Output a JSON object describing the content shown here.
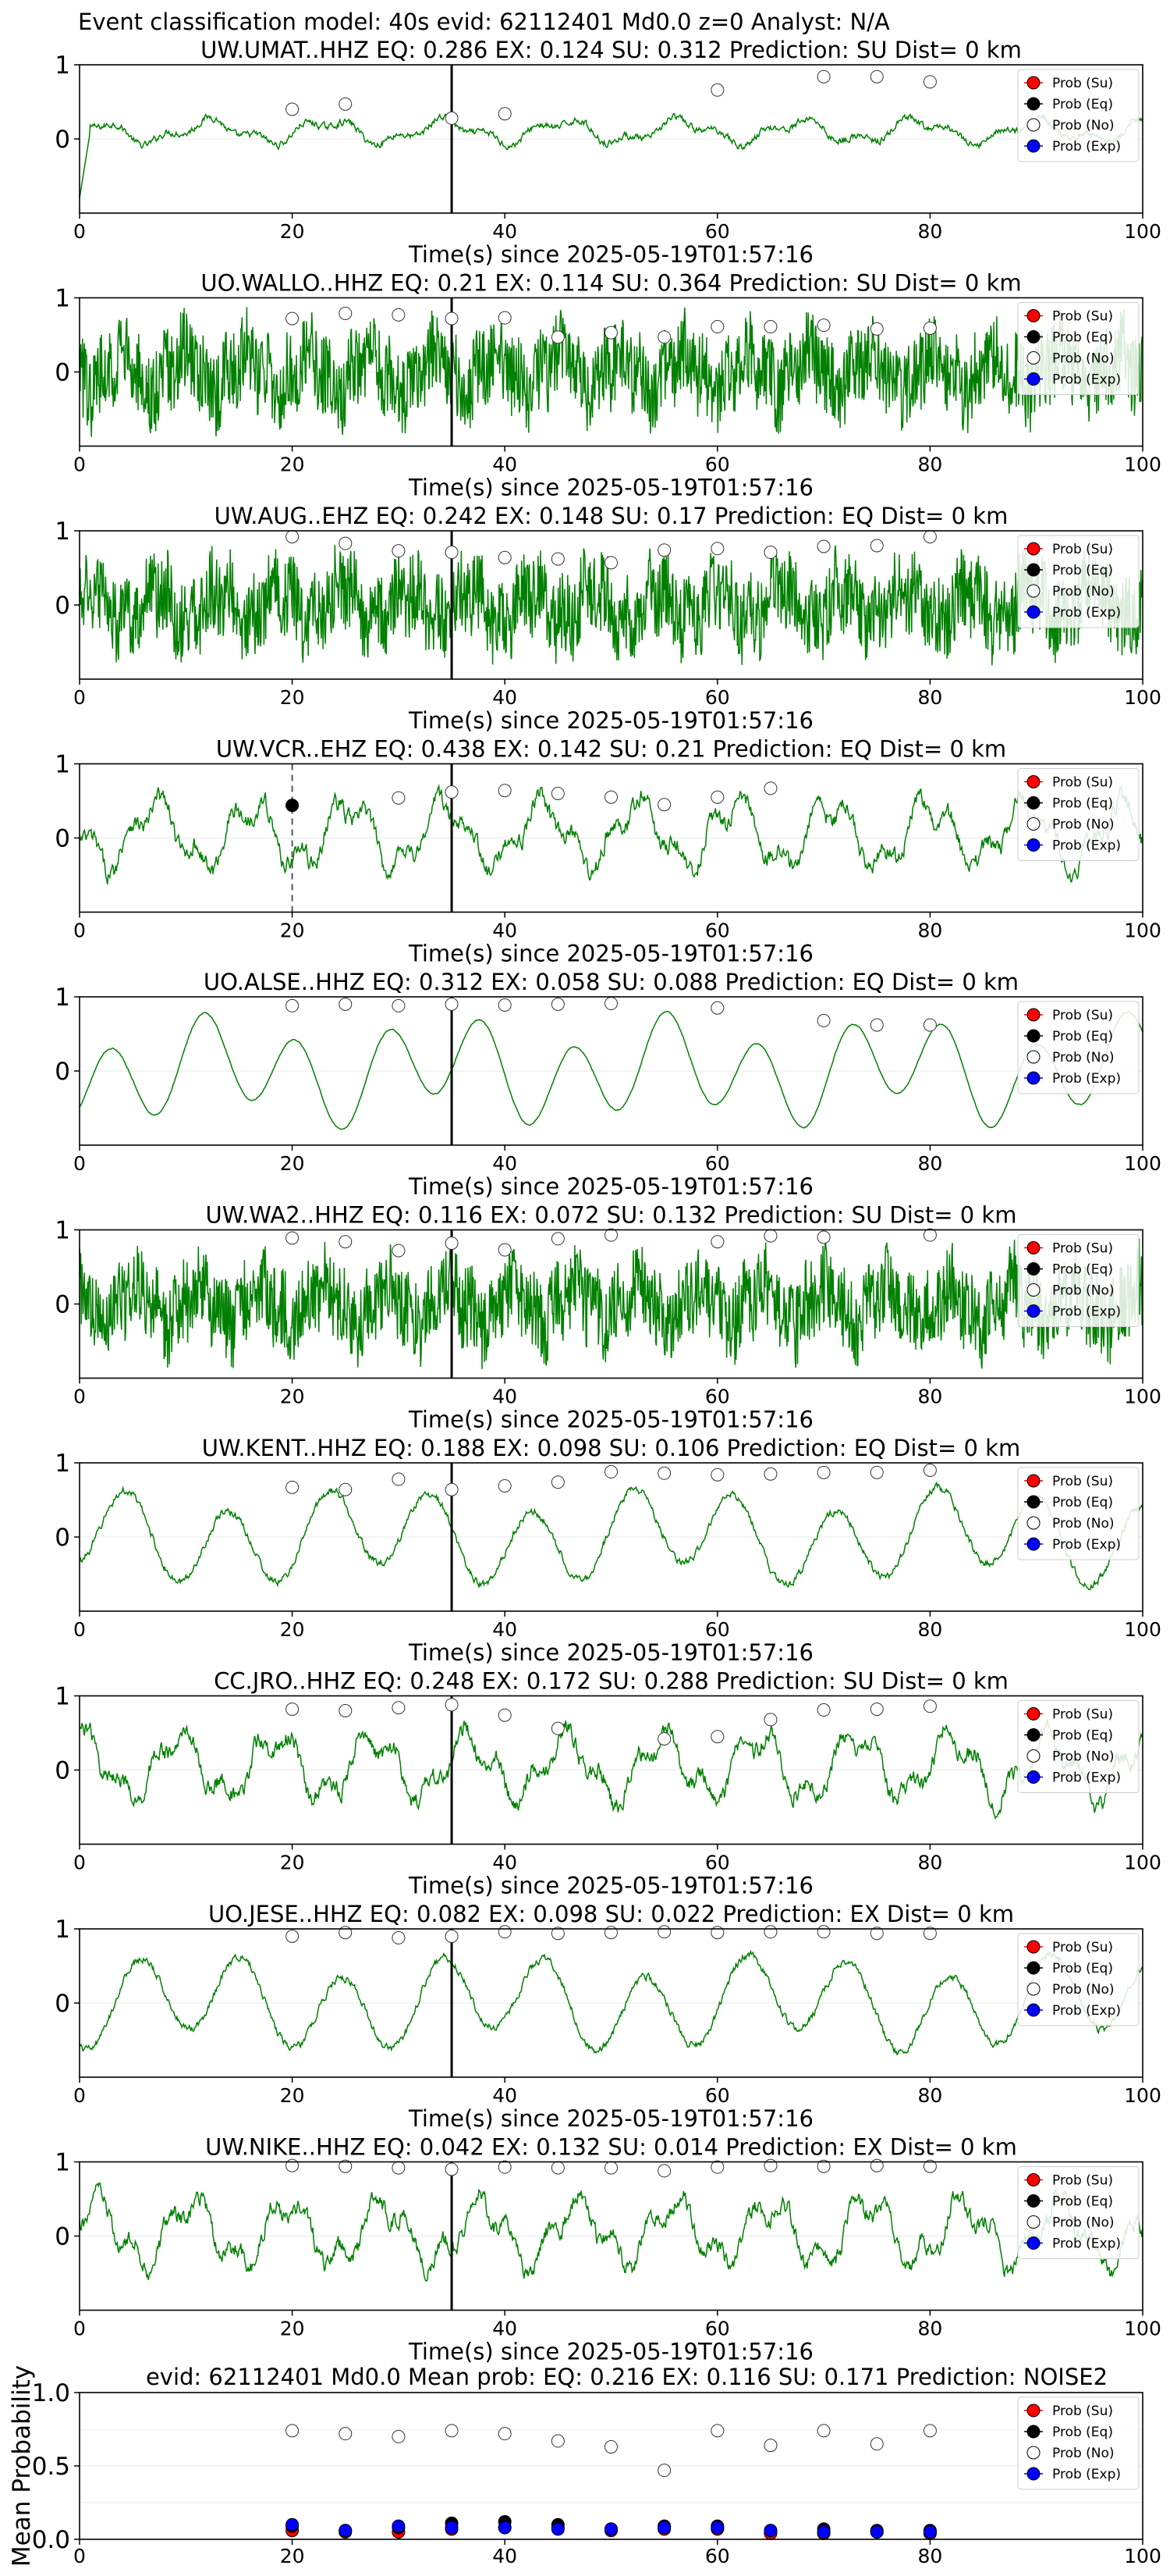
{
  "figure_title": "Event classification model: 40s evid: 62112401 Md0.0 z=0 Analyst: N/A",
  "legend": {
    "placement": "top-right",
    "entries": [
      {
        "label": "Prob (Su)",
        "color": "#ff0000"
      },
      {
        "label": "Prob (Eq)",
        "color": "#000000"
      },
      {
        "label": "Prob (No)",
        "color": "#ffffff"
      },
      {
        "label": "Prob (Exp)",
        "color": "#0000ff"
      }
    ]
  },
  "colors": {
    "waveform": "#008000",
    "pick_line": "#000000",
    "dashed_pick": "#555555"
  },
  "chart_data": [
    {
      "type": "line",
      "station": "UW.UMAT..HHZ",
      "title": "UW.UMAT..HHZ   EQ: 0.286  EX: 0.124  SU: 0.312   Prediction: SU    Dist= 0 km",
      "xlabel": "Time(s) since 2025-05-19T01:57:16",
      "xlim": [
        0,
        100
      ],
      "ylim": [
        -1,
        1
      ],
      "xticks": [
        0,
        20,
        40,
        60,
        80,
        100
      ],
      "yticks": [
        0,
        1
      ],
      "style": "low",
      "pick_time": 35,
      "eq_pick": null,
      "prob_no": {
        "x": [
          20,
          25,
          35,
          40,
          60,
          70,
          75,
          80
        ],
        "y": [
          0.4,
          0.47,
          0.28,
          0.34,
          0.66,
          0.84,
          0.84,
          0.77
        ]
      },
      "prob_eq": {
        "x": [],
        "y": []
      }
    },
    {
      "type": "line",
      "station": "UO.WALLO..HHZ",
      "title": "UO.WALLO..HHZ   EQ: 0.21  EX: 0.114  SU: 0.364   Prediction: SU    Dist= 0 km",
      "xlabel": "Time(s) since 2025-05-19T01:57:16",
      "xlim": [
        0,
        100
      ],
      "ylim": [
        -1,
        1
      ],
      "xticks": [
        0,
        20,
        40,
        60,
        80,
        100
      ],
      "yticks": [
        0,
        1
      ],
      "style": "noisy",
      "pick_time": 35,
      "eq_pick": null,
      "prob_no": {
        "x": [
          20,
          25,
          30,
          35,
          40,
          45,
          50,
          55,
          60,
          65,
          70,
          75,
          80
        ],
        "y": [
          0.72,
          0.79,
          0.77,
          0.72,
          0.73,
          0.47,
          0.53,
          0.47,
          0.61,
          0.61,
          0.63,
          0.58,
          0.59
        ]
      },
      "prob_eq": {
        "x": [],
        "y": []
      }
    },
    {
      "type": "line",
      "station": "UW.AUG..EHZ",
      "title": "UW.AUG..EHZ   EQ: 0.242  EX: 0.148  SU: 0.17   Prediction: EQ    Dist= 0 km",
      "xlabel": "Time(s) since 2025-05-19T01:57:16",
      "xlim": [
        0,
        100
      ],
      "ylim": [
        -1,
        1
      ],
      "xticks": [
        0,
        20,
        40,
        60,
        80,
        100
      ],
      "yticks": [
        0,
        1
      ],
      "style": "noisy",
      "pick_time": 35,
      "eq_pick": null,
      "prob_no": {
        "x": [
          20,
          25,
          30,
          35,
          40,
          45,
          50,
          55,
          60,
          65,
          70,
          75,
          80
        ],
        "y": [
          0.92,
          0.83,
          0.73,
          0.71,
          0.64,
          0.62,
          0.57,
          0.74,
          0.76,
          0.71,
          0.79,
          0.8,
          0.92
        ]
      },
      "prob_eq": {
        "x": [],
        "y": []
      }
    },
    {
      "type": "line",
      "station": "UW.VCR..EHZ",
      "title": "UW.VCR..EHZ   EQ: 0.438  EX: 0.142  SU: 0.21   Prediction: EQ    Dist= 0 km",
      "xlabel": "Time(s) since 2025-05-19T01:57:16",
      "xlim": [
        0,
        100
      ],
      "ylim": [
        -1,
        1
      ],
      "xticks": [
        0,
        20,
        40,
        60,
        80,
        100
      ],
      "yticks": [
        0,
        1
      ],
      "style": "medium",
      "pick_time": 35,
      "eq_pick": 20,
      "prob_no": {
        "x": [
          30,
          35,
          40,
          45,
          50,
          55,
          60,
          65
        ],
        "y": [
          0.54,
          0.62,
          0.64,
          0.6,
          0.55,
          0.45,
          0.55,
          0.67
        ]
      },
      "prob_eq": {
        "x": [
          20
        ],
        "y": [
          0.44
        ]
      }
    },
    {
      "type": "line",
      "station": "UO.ALSE..HHZ",
      "title": "UO.ALSE..HHZ   EQ: 0.312  EX: 0.058  SU: 0.088   Prediction: EQ    Dist= 0 km",
      "xlabel": "Time(s) since 2025-05-19T01:57:16",
      "xlim": [
        0,
        100
      ],
      "ylim": [
        -1,
        1
      ],
      "xticks": [
        0,
        20,
        40,
        60,
        80,
        100
      ],
      "yticks": [
        0,
        1
      ],
      "style": "smooth",
      "pick_time": 35,
      "eq_pick": null,
      "prob_no": {
        "x": [
          20,
          25,
          30,
          35,
          40,
          45,
          50,
          60,
          70,
          75,
          80
        ],
        "y": [
          0.88,
          0.9,
          0.88,
          0.9,
          0.89,
          0.9,
          0.91,
          0.85,
          0.68,
          0.62,
          0.62
        ]
      },
      "prob_eq": {
        "x": [],
        "y": []
      }
    },
    {
      "type": "line",
      "station": "UW.WA2..HHZ",
      "title": "UW.WA2..HHZ   EQ: 0.116  EX: 0.072  SU: 0.132   Prediction: SU    Dist= 0 km",
      "xlabel": "Time(s) since 2025-05-19T01:57:16",
      "xlim": [
        0,
        100
      ],
      "ylim": [
        -1,
        1
      ],
      "xticks": [
        0,
        20,
        40,
        60,
        80,
        100
      ],
      "yticks": [
        0,
        1
      ],
      "style": "noisy",
      "pick_time": 35,
      "eq_pick": null,
      "prob_no": {
        "x": [
          20,
          25,
          30,
          35,
          40,
          45,
          50,
          60,
          65,
          70,
          80
        ],
        "y": [
          0.89,
          0.84,
          0.72,
          0.82,
          0.73,
          0.88,
          0.93,
          0.84,
          0.92,
          0.9,
          0.93
        ]
      },
      "prob_eq": {
        "x": [],
        "y": []
      }
    },
    {
      "type": "line",
      "station": "UW.KENT..HHZ",
      "title": "UW.KENT..HHZ   EQ: 0.188  EX: 0.098  SU: 0.106   Prediction: EQ    Dist= 0 km",
      "xlabel": "Time(s) since 2025-05-19T01:57:16",
      "xlim": [
        0,
        100
      ],
      "ylim": [
        -1,
        1
      ],
      "xticks": [
        0,
        20,
        40,
        60,
        80,
        100
      ],
      "yticks": [
        0,
        1
      ],
      "style": "oscill",
      "pick_time": 35,
      "eq_pick": null,
      "prob_no": {
        "x": [
          20,
          25,
          30,
          35,
          40,
          45,
          50,
          55,
          60,
          65,
          70,
          75,
          80
        ],
        "y": [
          0.67,
          0.64,
          0.78,
          0.64,
          0.69,
          0.74,
          0.88,
          0.86,
          0.84,
          0.85,
          0.87,
          0.87,
          0.9
        ]
      },
      "prob_eq": {
        "x": [],
        "y": []
      }
    },
    {
      "type": "line",
      "station": "CC.JRO..HHZ",
      "title": "CC.JRO..HHZ   EQ: 0.248  EX: 0.172  SU: 0.288   Prediction: SU    Dist= 0 km",
      "xlabel": "Time(s) since 2025-05-19T01:57:16",
      "xlim": [
        0,
        100
      ],
      "ylim": [
        -1,
        1
      ],
      "xticks": [
        0,
        20,
        40,
        60,
        80,
        100
      ],
      "yticks": [
        0,
        1
      ],
      "style": "medium",
      "pick_time": 35,
      "eq_pick": null,
      "prob_no": {
        "x": [
          20,
          25,
          30,
          35,
          40,
          45,
          55,
          60,
          65,
          70,
          75,
          80
        ],
        "y": [
          0.82,
          0.8,
          0.84,
          0.88,
          0.74,
          0.56,
          0.42,
          0.45,
          0.68,
          0.81,
          0.82,
          0.86
        ]
      },
      "prob_eq": {
        "x": [],
        "y": []
      }
    },
    {
      "type": "line",
      "station": "UO.JESE..HHZ",
      "title": "UO.JESE..HHZ   EQ: 0.082  EX: 0.098  SU: 0.022   Prediction: EX    Dist= 0 km",
      "xlabel": "Time(s) since 2025-05-19T01:57:16",
      "xlim": [
        0,
        100
      ],
      "ylim": [
        -1,
        1
      ],
      "xticks": [
        0,
        20,
        40,
        60,
        80,
        100
      ],
      "yticks": [
        0,
        1
      ],
      "style": "oscill",
      "pick_time": 35,
      "eq_pick": null,
      "prob_no": {
        "x": [
          20,
          25,
          30,
          35,
          40,
          45,
          50,
          55,
          60,
          65,
          70,
          75,
          80
        ],
        "y": [
          0.9,
          0.95,
          0.88,
          0.9,
          0.96,
          0.94,
          0.95,
          0.96,
          0.95,
          0.96,
          0.96,
          0.94,
          0.94
        ]
      },
      "prob_eq": {
        "x": [],
        "y": []
      }
    },
    {
      "type": "line",
      "station": "UW.NIKE..HHZ",
      "title": "UW.NIKE..HHZ   EQ: 0.042  EX: 0.132  SU: 0.014   Prediction: EX    Dist= 0 km",
      "xlabel": "Time(s) since 2025-05-19T01:57:16",
      "xlim": [
        0,
        100
      ],
      "ylim": [
        -1,
        1
      ],
      "xticks": [
        0,
        20,
        40,
        60,
        80,
        100
      ],
      "yticks": [
        0,
        1
      ],
      "style": "medium",
      "pick_time": 35,
      "eq_pick": null,
      "prob_no": {
        "x": [
          20,
          25,
          30,
          35,
          40,
          45,
          50,
          55,
          60,
          65,
          70,
          75,
          80
        ],
        "y": [
          0.95,
          0.94,
          0.92,
          0.9,
          0.93,
          0.92,
          0.92,
          0.88,
          0.93,
          0.95,
          0.94,
          0.95,
          0.94
        ]
      },
      "prob_eq": {
        "x": [],
        "y": []
      }
    },
    {
      "type": "scatter",
      "title": "evid: 62112401   Md0.0   Mean prob:   EQ: 0.216  EX: 0.116  SU: 0.171   Prediction: NOISE2",
      "ylabel": "Mean Probability",
      "xlim": [
        0,
        100
      ],
      "ylim": [
        0,
        1
      ],
      "xticks": [
        0,
        20,
        40,
        60,
        80,
        100
      ],
      "yticks": [
        0.0,
        0.5,
        1.0
      ],
      "x": [
        20,
        25,
        30,
        35,
        40,
        45,
        50,
        55,
        60,
        65,
        70,
        75,
        80
      ],
      "series": [
        {
          "name": "Prob (Su)",
          "color": "#ff0000",
          "values": [
            0.06,
            0.05,
            0.05,
            0.07,
            0.08,
            0.08,
            0.06,
            0.07,
            0.07,
            0.04,
            0.04,
            0.05,
            0.04
          ]
        },
        {
          "name": "Prob (Eq)",
          "color": "#000000",
          "values": [
            0.09,
            0.06,
            0.08,
            0.11,
            0.12,
            0.1,
            0.07,
            0.09,
            0.09,
            0.06,
            0.07,
            0.06,
            0.06
          ]
        },
        {
          "name": "Prob (No)",
          "color": "#ffffff",
          "values": [
            0.74,
            0.72,
            0.7,
            0.74,
            0.72,
            0.67,
            0.63,
            0.47,
            0.74,
            0.64,
            0.74,
            0.65,
            0.74
          ]
        },
        {
          "name": "Prob (Exp)",
          "color": "#0000ff",
          "values": [
            0.1,
            0.06,
            0.09,
            0.08,
            0.08,
            0.07,
            0.07,
            0.08,
            0.08,
            0.06,
            0.05,
            0.05,
            0.05
          ]
        }
      ]
    }
  ]
}
